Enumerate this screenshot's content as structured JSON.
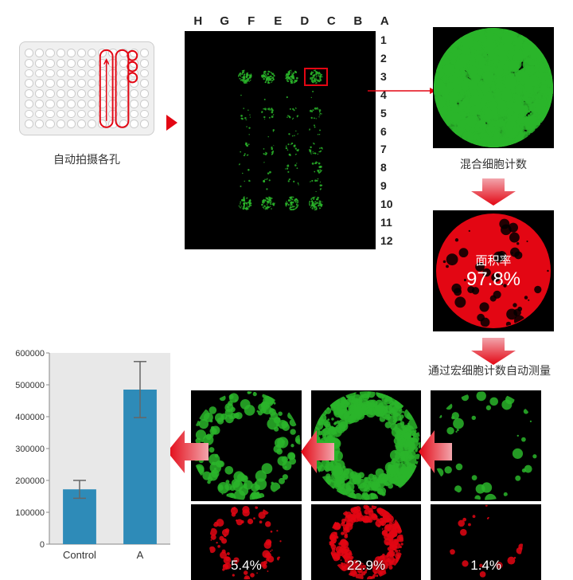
{
  "plate": {
    "caption": "自动拍摄各孔",
    "rows": 8,
    "cols": 12
  },
  "grid": {
    "col_letters": [
      "H",
      "G",
      "F",
      "E",
      "D",
      "C",
      "B",
      "A"
    ],
    "row_nums": [
      "1",
      "2",
      "3",
      "4",
      "5",
      "6",
      "7",
      "8",
      "9",
      "10",
      "11",
      "12"
    ],
    "highlight": {
      "row": 2,
      "col": 5
    },
    "cell_bg": "#000000",
    "green": "#2ab52a",
    "wells": [
      {
        "r": 2,
        "c": 2,
        "d": 0.9
      },
      {
        "r": 2,
        "c": 3,
        "d": 0.92
      },
      {
        "r": 2,
        "c": 4,
        "d": 0.95
      },
      {
        "r": 2,
        "c": 5,
        "d": 0.97
      },
      {
        "r": 3,
        "c": 2,
        "d": 0.02
      },
      {
        "r": 3,
        "c": 3,
        "d": 0.02
      },
      {
        "r": 3,
        "c": 4,
        "d": 0.02
      },
      {
        "r": 3,
        "c": 5,
        "d": 0.03
      },
      {
        "r": 4,
        "c": 2,
        "d": 0.15
      },
      {
        "r": 4,
        "c": 3,
        "d": 0.3
      },
      {
        "r": 4,
        "c": 4,
        "d": 0.18
      },
      {
        "r": 4,
        "c": 5,
        "d": 0.25
      },
      {
        "r": 5,
        "c": 2,
        "d": 0.05
      },
      {
        "r": 5,
        "c": 3,
        "d": 0.05
      },
      {
        "r": 5,
        "c": 4,
        "d": 0.08
      },
      {
        "r": 5,
        "c": 5,
        "d": 0.1
      },
      {
        "r": 6,
        "c": 2,
        "d": 0.15
      },
      {
        "r": 6,
        "c": 3,
        "d": 0.18
      },
      {
        "r": 6,
        "c": 4,
        "d": 0.25
      },
      {
        "r": 6,
        "c": 5,
        "d": 0.35
      },
      {
        "r": 7,
        "c": 2,
        "d": 0.05
      },
      {
        "r": 7,
        "c": 3,
        "d": 0.05
      },
      {
        "r": 7,
        "c": 4,
        "d": 0.12
      },
      {
        "r": 7,
        "c": 5,
        "d": 0.25
      },
      {
        "r": 8,
        "c": 2,
        "d": 0.05
      },
      {
        "r": 8,
        "c": 3,
        "d": 0.12
      },
      {
        "r": 8,
        "c": 4,
        "d": 0.08
      },
      {
        "r": 8,
        "c": 5,
        "d": 0.15
      },
      {
        "r": 9,
        "c": 2,
        "d": 0.85
      },
      {
        "r": 9,
        "c": 3,
        "d": 0.88
      },
      {
        "r": 9,
        "c": 4,
        "d": 0.9
      },
      {
        "r": 9,
        "c": 5,
        "d": 0.9
      }
    ]
  },
  "zoom": {
    "label": "混合细胞计数",
    "green": "#2ab52a",
    "density": 0.97
  },
  "area": {
    "label1": "面积率",
    "value": "97.8%",
    "fill": "#e30613"
  },
  "macro_label": "通过宏细胞计数自动测量",
  "strip": {
    "items": [
      {
        "green_density": 0.03,
        "red_density": 0.014,
        "pct": "1.4%"
      },
      {
        "green_density": 0.35,
        "red_density": 0.229,
        "pct": "22.9%"
      },
      {
        "green_density": 0.12,
        "red_density": 0.054,
        "pct": "5.4%"
      }
    ],
    "green": "#2ab52a",
    "red": "#e30613"
  },
  "chart": {
    "type": "bar",
    "categories": [
      "Control",
      "A"
    ],
    "values": [
      172000,
      485000
    ],
    "errors": [
      28000,
      88000
    ],
    "bar_color": "#2e8bb8",
    "error_color": "#666666",
    "ylim": [
      0,
      600000
    ],
    "ytick_step": 100000,
    "plot_bg": "#e8e8e8",
    "axis_color": "#888888",
    "tick_fontsize": 11,
    "label_fontsize": 13
  },
  "colors": {
    "accent_red": "#e30613",
    "arrow_grad1": "#f2a5ac",
    "arrow_grad2": "#e30613"
  }
}
